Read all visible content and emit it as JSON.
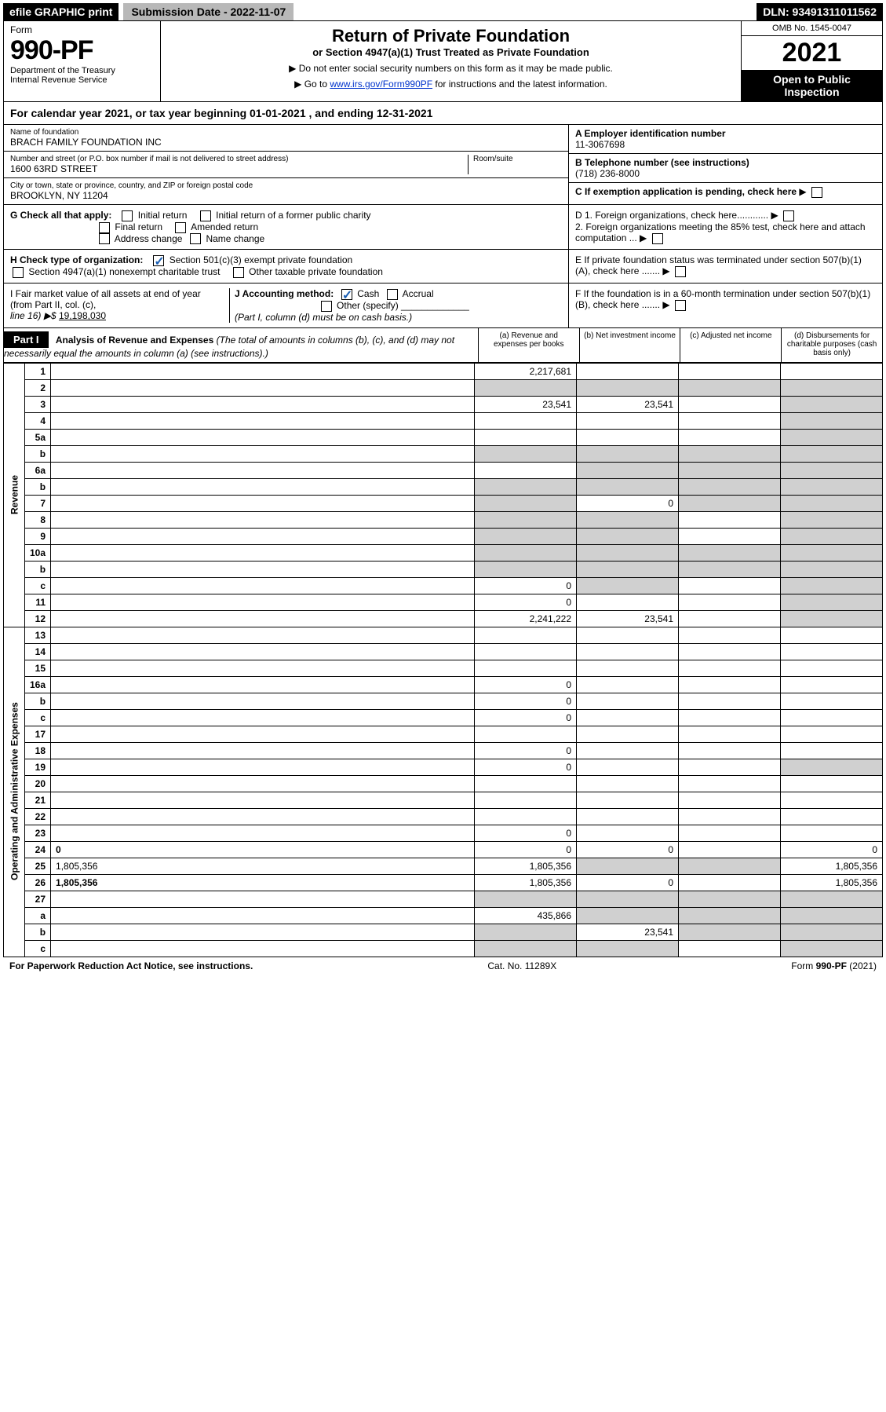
{
  "topbar": {
    "efile": "efile GRAPHIC print",
    "subdate_label": "Submission Date - 2022-11-07",
    "dln": "DLN: 93491311011562"
  },
  "header": {
    "form": "Form",
    "num": "990-PF",
    "dept": "Department of the Treasury",
    "irs": "Internal Revenue Service",
    "title": "Return of Private Foundation",
    "sub": "or Section 4947(a)(1) Trust Treated as Private Foundation",
    "note1": "▶ Do not enter social security numbers on this form as it may be made public.",
    "note2_pre": "▶ Go to ",
    "note2_link": "www.irs.gov/Form990PF",
    "note2_post": " for instructions and the latest information.",
    "omb": "OMB No. 1545-0047",
    "year": "2021",
    "open": "Open to Public Inspection"
  },
  "calyear": "For calendar year 2021, or tax year beginning 01-01-2021             , and ending 12-31-2021",
  "id": {
    "name_lbl": "Name of foundation",
    "name": "BRACH FAMILY FOUNDATION INC",
    "addr_lbl": "Number and street (or P.O. box number if mail is not delivered to street address)",
    "addr": "1600 63RD STREET",
    "room_lbl": "Room/suite",
    "city_lbl": "City or town, state or province, country, and ZIP or foreign postal code",
    "city": "BROOKLYN, NY  11204",
    "ein_lbl": "A Employer identification number",
    "ein": "11-3067698",
    "tel_lbl": "B Telephone number (see instructions)",
    "tel": "(718) 236-8000",
    "c": "C If exemption application is pending, check here"
  },
  "g": {
    "lbl": "G Check all that apply:",
    "o1": "Initial return",
    "o2": "Initial return of a former public charity",
    "o3": "Final return",
    "o4": "Amended return",
    "o5": "Address change",
    "o6": "Name change"
  },
  "d": {
    "d1": "D 1. Foreign organizations, check here............",
    "d2": "2. Foreign organizations meeting the 85% test, check here and attach computation ..."
  },
  "h": {
    "lbl": "H Check type of organization:",
    "o1": "Section 501(c)(3) exempt private foundation",
    "o2": "Section 4947(a)(1) nonexempt charitable trust",
    "o3": "Other taxable private foundation"
  },
  "e": "E  If private foundation status was terminated under section 507(b)(1)(A), check here .......",
  "i": {
    "lbl": "I Fair market value of all assets at end of year (from Part II, col. (c),",
    "line": "line 16) ▶$ ",
    "val": "19,198,030"
  },
  "j": {
    "lbl": "J Accounting method:",
    "cash": "Cash",
    "accrual": "Accrual",
    "other": "Other (specify)",
    "note": "(Part I, column (d) must be on cash basis.)"
  },
  "f": "F  If the foundation is in a 60-month termination under section 507(b)(1)(B), check here .......",
  "part1": {
    "label": "Part I",
    "title": "Analysis of Revenue and Expenses",
    "note": " (The total of amounts in columns (b), (c), and (d) may not necessarily equal the amounts in column (a) (see instructions).)",
    "col_a": "(a)    Revenue and expenses per books",
    "col_b": "(b)    Net investment income",
    "col_c": "(c)    Adjusted net income",
    "col_d": "(d)    Disbursements for charitable purposes (cash basis only)"
  },
  "vert": {
    "rev": "Revenue",
    "exp": "Operating and Administrative Expenses"
  },
  "rows": [
    {
      "n": "1",
      "d": "",
      "a": "2,217,681",
      "b": "",
      "c": "",
      "sc": "",
      "sd": ""
    },
    {
      "n": "2",
      "d": "",
      "a": "",
      "b": "",
      "c": "",
      "sa": "shade",
      "sb": "shade",
      "sc": "shade",
      "sd": "shade"
    },
    {
      "n": "3",
      "d": "",
      "a": "23,541",
      "b": "23,541",
      "c": "",
      "sd": "shade"
    },
    {
      "n": "4",
      "d": "",
      "a": "",
      "b": "",
      "c": "",
      "sd": "shade"
    },
    {
      "n": "5a",
      "d": "",
      "a": "",
      "b": "",
      "c": "",
      "sd": "shade"
    },
    {
      "n": "b",
      "d": "",
      "a": "",
      "b": "",
      "c": "",
      "sa": "shade",
      "sb": "shade",
      "sc": "shade",
      "sd": "shade"
    },
    {
      "n": "6a",
      "d": "",
      "a": "",
      "b": "",
      "c": "",
      "sb": "shade",
      "sc": "shade",
      "sd": "shade"
    },
    {
      "n": "b",
      "d": "",
      "a": "",
      "b": "",
      "c": "",
      "sa": "shade",
      "sb": "shade",
      "sc": "shade",
      "sd": "shade"
    },
    {
      "n": "7",
      "d": "",
      "a": "",
      "b": "0",
      "c": "",
      "sa": "shade",
      "sc": "shade",
      "sd": "shade"
    },
    {
      "n": "8",
      "d": "",
      "a": "",
      "b": "",
      "c": "",
      "sa": "shade",
      "sb": "shade",
      "sd": "shade"
    },
    {
      "n": "9",
      "d": "",
      "a": "",
      "b": "",
      "c": "",
      "sa": "shade",
      "sb": "shade",
      "sd": "shade"
    },
    {
      "n": "10a",
      "d": "",
      "a": "",
      "b": "",
      "c": "",
      "sa": "shade",
      "sb": "shade",
      "sc": "shade",
      "sd": "shade"
    },
    {
      "n": "b",
      "d": "",
      "a": "",
      "b": "",
      "c": "",
      "sa": "shade",
      "sb": "shade",
      "sc": "shade",
      "sd": "shade"
    },
    {
      "n": "c",
      "d": "",
      "a": "0",
      "b": "",
      "c": "",
      "sb": "shade",
      "sd": "shade"
    },
    {
      "n": "11",
      "d": "",
      "a": "0",
      "b": "",
      "c": "",
      "sd": "shade"
    },
    {
      "n": "12",
      "d": "",
      "a": "2,241,222",
      "b": "23,541",
      "c": "",
      "sd": "shade",
      "bold": true
    },
    {
      "n": "13",
      "d": "",
      "a": "",
      "b": "",
      "c": ""
    },
    {
      "n": "14",
      "d": "",
      "a": "",
      "b": "",
      "c": ""
    },
    {
      "n": "15",
      "d": "",
      "a": "",
      "b": "",
      "c": ""
    },
    {
      "n": "16a",
      "d": "",
      "a": "0",
      "b": "",
      "c": ""
    },
    {
      "n": "b",
      "d": "",
      "a": "0",
      "b": "",
      "c": ""
    },
    {
      "n": "c",
      "d": "",
      "a": "0",
      "b": "",
      "c": ""
    },
    {
      "n": "17",
      "d": "",
      "a": "",
      "b": "",
      "c": ""
    },
    {
      "n": "18",
      "d": "",
      "a": "0",
      "b": "",
      "c": ""
    },
    {
      "n": "19",
      "d": "",
      "a": "0",
      "b": "",
      "c": "",
      "sd": "shade"
    },
    {
      "n": "20",
      "d": "",
      "a": "",
      "b": "",
      "c": ""
    },
    {
      "n": "21",
      "d": "",
      "a": "",
      "b": "",
      "c": ""
    },
    {
      "n": "22",
      "d": "",
      "a": "",
      "b": "",
      "c": ""
    },
    {
      "n": "23",
      "d": "",
      "a": "0",
      "b": "",
      "c": ""
    },
    {
      "n": "24",
      "d": "0",
      "a": "0",
      "b": "0",
      "c": "",
      "bold": true
    },
    {
      "n": "25",
      "d": "1,805,356",
      "a": "1,805,356",
      "b": "",
      "c": "",
      "sb": "shade",
      "sc": "shade"
    },
    {
      "n": "26",
      "d": "1,805,356",
      "a": "1,805,356",
      "b": "0",
      "c": "",
      "bold": true
    },
    {
      "n": "27",
      "d": "",
      "a": "",
      "b": "",
      "c": "",
      "sa": "shade",
      "sb": "shade",
      "sc": "shade",
      "sd": "shade"
    },
    {
      "n": "a",
      "d": "",
      "a": "435,866",
      "b": "",
      "c": "",
      "sb": "shade",
      "sc": "shade",
      "sd": "shade",
      "bold": true
    },
    {
      "n": "b",
      "d": "",
      "a": "",
      "b": "23,541",
      "c": "",
      "sa": "shade",
      "sc": "shade",
      "sd": "shade",
      "bold": true
    },
    {
      "n": "c",
      "d": "",
      "a": "",
      "b": "",
      "c": "",
      "sa": "shade",
      "sb": "shade",
      "sd": "shade",
      "bold": true
    }
  ],
  "footer": {
    "left": "For Paperwork Reduction Act Notice, see instructions.",
    "mid": "Cat. No. 11289X",
    "right": "Form 990-PF (2021)"
  }
}
